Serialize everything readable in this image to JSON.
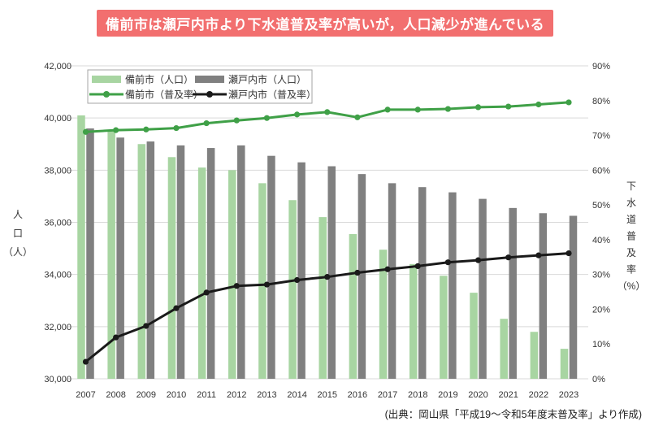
{
  "title_banner": {
    "text": "備前市は瀬戸内市より下水道普及率が高いが，人口減少が進んでいる",
    "bg_color": "#f26f6f",
    "text_color": "#ffffff"
  },
  "source_note": "(出典：岡山県「平成19～令和5年度末普及率」より作成)",
  "chart_data": {
    "type": "combo-bar-line",
    "categories": [
      "2007",
      "2008",
      "2009",
      "2010",
      "2011",
      "2012",
      "2013",
      "2014",
      "2015",
      "2016",
      "2017",
      "2018",
      "2019",
      "2020",
      "2021",
      "2022",
      "2023"
    ],
    "series": [
      {
        "name": "備前市（人口）",
        "type": "bar",
        "axis": "left",
        "color": "#a8d5a2",
        "values": [
          40100,
          39550,
          39000,
          38500,
          38100,
          38000,
          37500,
          36850,
          36200,
          35550,
          34950,
          34400,
          33950,
          33300,
          32300,
          31800,
          31150
        ]
      },
      {
        "name": "瀬戸内市（人口）",
        "type": "bar",
        "axis": "left",
        "color": "#808080",
        "values": [
          39600,
          39250,
          39100,
          38950,
          38850,
          38950,
          38550,
          38300,
          38150,
          37850,
          37500,
          37350,
          37150,
          36900,
          36550,
          36350,
          36250
        ]
      },
      {
        "name": "備前市（普及率）",
        "type": "line",
        "axis": "right",
        "color": "#3fa047",
        "values": [
          71.0,
          71.5,
          71.7,
          72.1,
          73.5,
          74.3,
          75.0,
          76.0,
          76.7,
          75.2,
          77.4,
          77.4,
          77.6,
          78.1,
          78.3,
          78.9,
          79.5
        ]
      },
      {
        "name": "瀬戸内市（普及率）",
        "type": "line",
        "axis": "right",
        "color": "#1a1a1a",
        "values": [
          4.9,
          11.9,
          15.2,
          20.3,
          24.8,
          26.7,
          27.1,
          28.4,
          29.3,
          30.5,
          31.5,
          32.4,
          33.5,
          34.1,
          34.9,
          35.5,
          36.1
        ]
      }
    ],
    "left_axis": {
      "label": "人口（人）",
      "label_chars": [
        "人",
        "口",
        "（人）"
      ],
      "min": 30000,
      "max": 42000,
      "step": 2000,
      "tick_labels": [
        "30,000",
        "32,000",
        "34,000",
        "36,000",
        "38,000",
        "40,000",
        "42,000"
      ]
    },
    "right_axis": {
      "label": "下水道普及率（%）",
      "label_chars": [
        "下",
        "水",
        "道",
        "普",
        "及",
        "率",
        "（%）"
      ],
      "min": 0,
      "max": 90,
      "step": 10,
      "tick_labels": [
        "0%",
        "10%",
        "20%",
        "30%",
        "40%",
        "50%",
        "60%",
        "70%",
        "80%",
        "90%"
      ]
    },
    "grid": true,
    "legend_position": "top-left"
  },
  "colors": {
    "grid": "#d9d9d9",
    "axis_text": "#333333",
    "legend_border": "#a6a6a6",
    "legend_bg": "#ffffff"
  }
}
